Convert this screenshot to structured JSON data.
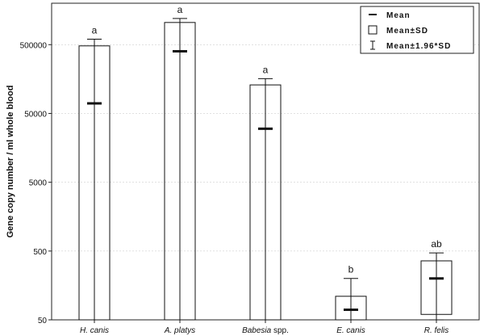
{
  "chart_data": {
    "type": "bar",
    "ylabel": "Gene copy number / ml whole blood",
    "yscale": "log",
    "ylim": [
      50,
      2000000
    ],
    "yticks": [
      {
        "value": 500000,
        "label": "500000"
      },
      {
        "value": 50000,
        "label": "50000"
      },
      {
        "value": 5000,
        "label": "5000"
      },
      {
        "value": 500,
        "label": "500"
      },
      {
        "value": 50,
        "label": "50"
      }
    ],
    "grid": true,
    "legend_position": "top-right",
    "legend": [
      {
        "symbol": "mean-line",
        "label": "Mean"
      },
      {
        "symbol": "box",
        "label": "Mean±SD"
      },
      {
        "symbol": "whisker",
        "label": "Mean±1.96*SD"
      }
    ],
    "categories": [
      {
        "name": "H. canis",
        "name_italic": "H. canis",
        "name_suffix": ""
      },
      {
        "name": "A. platys",
        "name_italic": "A. platys",
        "name_suffix": ""
      },
      {
        "name": "Babesia spp.",
        "name_italic": "Babesia",
        "name_suffix": " spp."
      },
      {
        "name": "E. canis",
        "name_italic": "E. canis",
        "name_suffix": ""
      },
      {
        "name": "R. felis",
        "name_italic": "R. felis",
        "name_suffix": ""
      }
    ],
    "mean": [
      70000,
      400000,
      30000,
      70,
      200
    ],
    "sd_low": [
      50,
      50,
      50,
      50,
      60
    ],
    "sd_high": [
      480000,
      1050000,
      130000,
      110,
      360
    ],
    "ci_low": [
      50,
      50,
      50,
      50,
      50
    ],
    "ci_high": [
      600000,
      1200000,
      160000,
      200,
      470
    ],
    "group_letters": [
      "a",
      "a",
      "a",
      "b",
      "ab"
    ]
  }
}
